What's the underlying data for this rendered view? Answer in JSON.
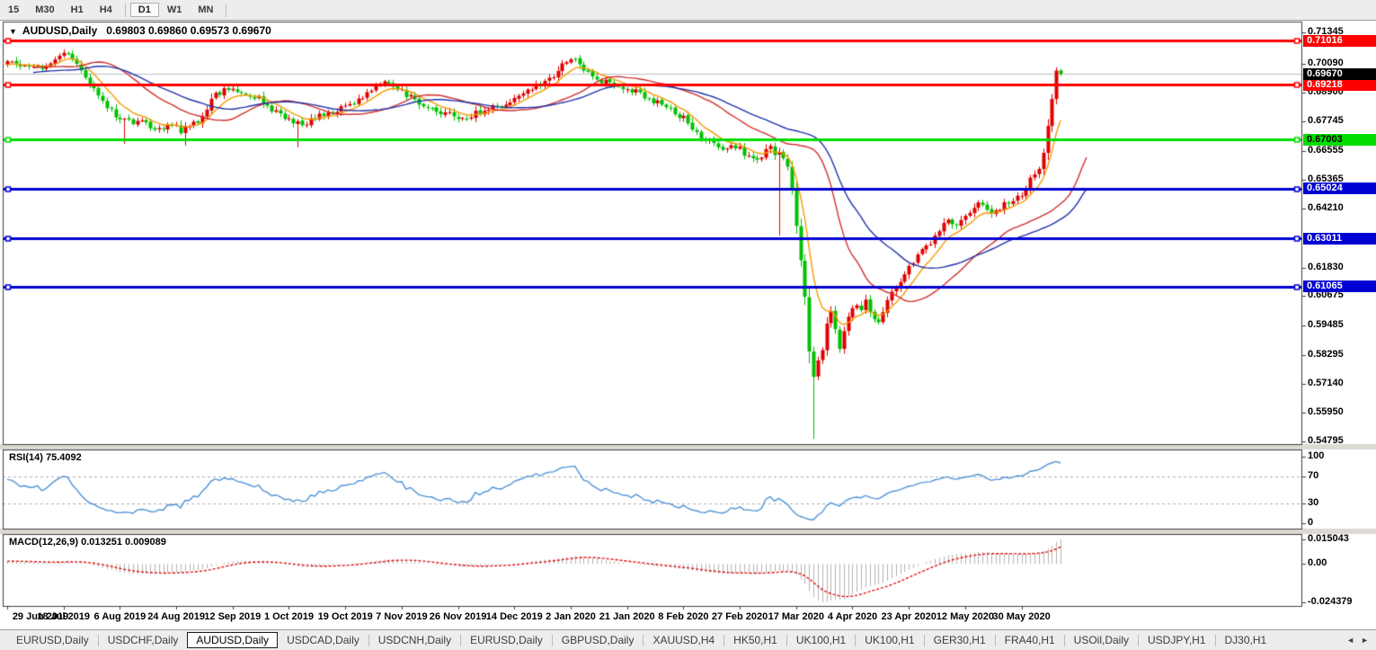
{
  "toolbar": {
    "timeframes": [
      {
        "label": "15",
        "active": false
      },
      {
        "label": "M30",
        "active": false
      },
      {
        "label": "H1",
        "active": false
      },
      {
        "label": "H4",
        "active": false
      },
      {
        "label": "D1",
        "active": true
      },
      {
        "label": "W1",
        "active": false
      },
      {
        "label": "MN",
        "active": false
      }
    ],
    "separators_after": [
      3,
      6
    ]
  },
  "chart": {
    "title_symbol": "AUDUSD,Daily",
    "title_ohlc": "0.69803 0.69860 0.69573 0.69670",
    "dropdown_icon": "▼",
    "price_axis_ticks": [
      "0.71345",
      "0.70090",
      "0.68900",
      "0.67745",
      "0.66555",
      "0.65365",
      "0.64210",
      "0.61830",
      "0.60675",
      "0.59485",
      "0.58295",
      "0.57140",
      "0.55950",
      "0.54795"
    ],
    "hlines": [
      {
        "label": "0.71016",
        "price": 0.71016,
        "color": "#ff0000",
        "text_color": "#ffffff",
        "width": 3
      },
      {
        "label": "0.69218",
        "price": 0.69218,
        "color": "#ff0000",
        "text_color": "#ffffff",
        "width": 3
      },
      {
        "label": "0.67003",
        "price": 0.67003,
        "color": "#00dd00",
        "text_color": "#000000",
        "width": 3
      },
      {
        "label": "0.65024",
        "price": 0.65024,
        "color": "#0000d2",
        "text_color": "#ffffff",
        "width": 3
      },
      {
        "label": "0.63011",
        "price": 0.63011,
        "color": "#0000d2",
        "text_color": "#ffffff",
        "width": 3
      },
      {
        "label": "0.61065",
        "price": 0.61065,
        "color": "#0000d2",
        "text_color": "#ffffff",
        "width": 3
      }
    ],
    "current_price": {
      "label": "0.69670",
      "value": 0.6967,
      "badge_bg": "#000000",
      "text_color": "#ffffff",
      "line_color": "#c0c0c0"
    },
    "date_axis": [
      "29 Jun 2019",
      "18 Jul 2019",
      "6 Aug 2019",
      "24 Aug 2019",
      "12 Sep 2019",
      "1 Oct 2019",
      "19 Oct 2019",
      "7 Nov 2019",
      "26 Nov 2019",
      "14 Dec 2019",
      "2 Jan 2020",
      "21 Jan 2020",
      "8 Feb 2020",
      "27 Feb 2020",
      "17 Mar 2020",
      "4 Apr 2020",
      "23 Apr 2020",
      "12 May 2020",
      "30 May 2020"
    ]
  },
  "rsi": {
    "label": "RSI(14) 75.4092",
    "period": 14,
    "current": 75.4092,
    "axis_labels": [
      "100",
      "70",
      "30",
      "0"
    ],
    "levels": [
      70,
      30
    ],
    "line_color": "#4f94d8"
  },
  "macd": {
    "label": "MACD(12,26,9) 0.013251 0.009089",
    "fast": 12,
    "slow": 26,
    "signal_period": 9,
    "current_macd": 0.013251,
    "current_signal": 0.009089,
    "axis_top_label": "0.015043",
    "axis_zero_label": "0.00",
    "axis_bottom_label": "-0.024379",
    "hist_color": "#b4b4b4",
    "signal_color": "#e01010"
  },
  "tabs": [
    {
      "label": "EURUSD,Daily",
      "active": false
    },
    {
      "label": "USDCHF,Daily",
      "active": false
    },
    {
      "label": "AUDUSD,Daily",
      "active": true
    },
    {
      "label": "USDCAD,Daily",
      "active": false
    },
    {
      "label": "USDCNH,Daily",
      "active": false
    },
    {
      "label": "EURUSD,Daily",
      "active": false
    },
    {
      "label": "GBPUSD,Daily",
      "active": false
    },
    {
      "label": "XAUUSD,H4",
      "active": false
    },
    {
      "label": "HK50,H1",
      "active": false
    },
    {
      "label": "UK100,H1",
      "active": false
    },
    {
      "label": "UK100,H1",
      "active": false
    },
    {
      "label": "GER30,H1",
      "active": false
    },
    {
      "label": "FRA40,H1",
      "active": false
    },
    {
      "label": "USOil,Daily",
      "active": false
    },
    {
      "label": "USDJPY,H1",
      "active": false
    },
    {
      "label": "DJ30,H1",
      "active": false
    }
  ],
  "tab_scroll": {
    "left_icon": "◄",
    "right_icon": "►"
  },
  "chart_data": {
    "type": "candlestick",
    "symbol": "AUDUSD",
    "timeframe": "Daily",
    "up_color": "#e00000",
    "down_color": "#00c000",
    "ylim": [
      0.54795,
      0.71345
    ],
    "count": 244,
    "pre_candles": 60,
    "pre_anchors": [
      [
        -60,
        0.688
      ],
      [
        -42,
        0.6915
      ],
      [
        -25,
        0.695
      ],
      [
        -12,
        0.6985
      ]
    ],
    "close_anchors": [
      [
        0,
        0.701
      ],
      [
        4,
        0.7003
      ],
      [
        9,
        0.6992
      ],
      [
        13,
        0.7047
      ],
      [
        15,
        0.7036
      ],
      [
        17,
        0.6982
      ],
      [
        19,
        0.692
      ],
      [
        21,
        0.6883
      ],
      [
        23,
        0.6829
      ],
      [
        25,
        0.68
      ],
      [
        27,
        0.678
      ],
      [
        29,
        0.6762
      ],
      [
        31,
        0.6773
      ],
      [
        33,
        0.6755
      ],
      [
        36,
        0.6747
      ],
      [
        38,
        0.6762
      ],
      [
        40,
        0.6736
      ],
      [
        42,
        0.6755
      ],
      [
        44,
        0.6773
      ],
      [
        46,
        0.6829
      ],
      [
        48,
        0.6883
      ],
      [
        50,
        0.69
      ],
      [
        52,
        0.6907
      ],
      [
        54,
        0.69
      ],
      [
        56,
        0.6872
      ],
      [
        58,
        0.6865
      ],
      [
        60,
        0.6836
      ],
      [
        62,
        0.681
      ],
      [
        64,
        0.6792
      ],
      [
        66,
        0.6763
      ],
      [
        69,
        0.6773
      ],
      [
        71,
        0.6792
      ],
      [
        73,
        0.68
      ],
      [
        75,
        0.681
      ],
      [
        77,
        0.6829
      ],
      [
        79,
        0.6847
      ],
      [
        81,
        0.6858
      ],
      [
        83,
        0.6883
      ],
      [
        85,
        0.6907
      ],
      [
        87,
        0.693
      ],
      [
        89,
        0.6919
      ],
      [
        91,
        0.6894
      ],
      [
        93,
        0.6872
      ],
      [
        95,
        0.6847
      ],
      [
        97,
        0.6829
      ],
      [
        99,
        0.681
      ],
      [
        102,
        0.68
      ],
      [
        104,
        0.6785
      ],
      [
        106,
        0.6792
      ],
      [
        108,
        0.6807
      ],
      [
        110,
        0.6822
      ],
      [
        112,
        0.6829
      ],
      [
        114,
        0.6836
      ],
      [
        116,
        0.6858
      ],
      [
        118,
        0.6883
      ],
      [
        120,
        0.69
      ],
      [
        122,
        0.6919
      ],
      [
        124,
        0.6937
      ],
      [
        126,
        0.6955
      ],
      [
        128,
        0.701
      ],
      [
        130,
        0.7029
      ],
      [
        133,
        0.6992
      ],
      [
        135,
        0.6955
      ],
      [
        137,
        0.6937
      ],
      [
        139,
        0.693
      ],
      [
        141,
        0.6919
      ],
      [
        143,
        0.6907
      ],
      [
        145,
        0.6894
      ],
      [
        147,
        0.6872
      ],
      [
        149,
        0.6858
      ],
      [
        151,
        0.6836
      ],
      [
        153,
        0.6822
      ],
      [
        155,
        0.68
      ],
      [
        157,
        0.6773
      ],
      [
        159,
        0.6727
      ],
      [
        161,
        0.67
      ],
      [
        163,
        0.6683
      ],
      [
        165,
        0.6664
      ],
      [
        168,
        0.6675
      ],
      [
        170,
        0.6646
      ],
      [
        172,
        0.6617
      ],
      [
        174,
        0.6639
      ],
      [
        176,
        0.6664
      ],
      [
        177,
        0.6638
      ],
      [
        178,
        0.6658
      ],
      [
        180,
        0.6591
      ],
      [
        181,
        0.65
      ],
      [
        182,
        0.6355
      ],
      [
        183,
        0.621
      ],
      [
        184,
        0.6064
      ],
      [
        185,
        0.5846
      ],
      [
        186,
        0.5737
      ],
      [
        187,
        0.581
      ],
      [
        188,
        0.5846
      ],
      [
        189,
        0.5955
      ],
      [
        190,
        0.601
      ],
      [
        191,
        0.5937
      ],
      [
        192,
        0.5865
      ],
      [
        193,
        0.5919
      ],
      [
        194,
        0.5992
      ],
      [
        196,
        0.6028
      ],
      [
        197,
        0.601
      ],
      [
        198,
        0.6047
      ],
      [
        200,
        0.5973
      ],
      [
        201,
        0.5955
      ],
      [
        202,
        0.5992
      ],
      [
        203,
        0.6047
      ],
      [
        205,
        0.6101
      ],
      [
        207,
        0.6156
      ],
      [
        209,
        0.621
      ],
      [
        211,
        0.6247
      ],
      [
        213,
        0.6283
      ],
      [
        215,
        0.6338
      ],
      [
        217,
        0.6374
      ],
      [
        219,
        0.6356
      ],
      [
        221,
        0.6392
      ],
      [
        223,
        0.6429
      ],
      [
        225,
        0.6447
      ],
      [
        227,
        0.641
      ],
      [
        230,
        0.6436
      ],
      [
        232,
        0.6458
      ],
      [
        234,
        0.6483
      ],
      [
        235,
        0.6508
      ],
      [
        236,
        0.6538
      ],
      [
        237,
        0.6556
      ],
      [
        238,
        0.6592
      ],
      [
        239,
        0.6647
      ],
      [
        240,
        0.6756
      ],
      [
        241,
        0.6865
      ],
      [
        242,
        0.698
      ],
      [
        243,
        0.6967
      ]
    ],
    "special_wicks": [
      {
        "i": 13,
        "h": 0.7066
      },
      {
        "i": 27,
        "l": 0.6683
      },
      {
        "i": 41,
        "l": 0.6677
      },
      {
        "i": 67,
        "l": 0.667
      },
      {
        "i": 130,
        "h": 0.7032
      },
      {
        "i": 178,
        "l": 0.6313
      },
      {
        "i": 186,
        "l": 0.549
      },
      {
        "i": 242,
        "h": 0.6993
      }
    ],
    "last_candle": {
      "o": 0.69803,
      "h": 0.6986,
      "l": 0.69573,
      "c": 0.6967
    },
    "moving_averages": [
      {
        "period": 8,
        "color": "#f59b00",
        "shift": 0
      },
      {
        "period": 18,
        "color": "#d03030",
        "shift": 6
      },
      {
        "period": 36,
        "color": "#2233aa",
        "shift": 6
      }
    ]
  }
}
